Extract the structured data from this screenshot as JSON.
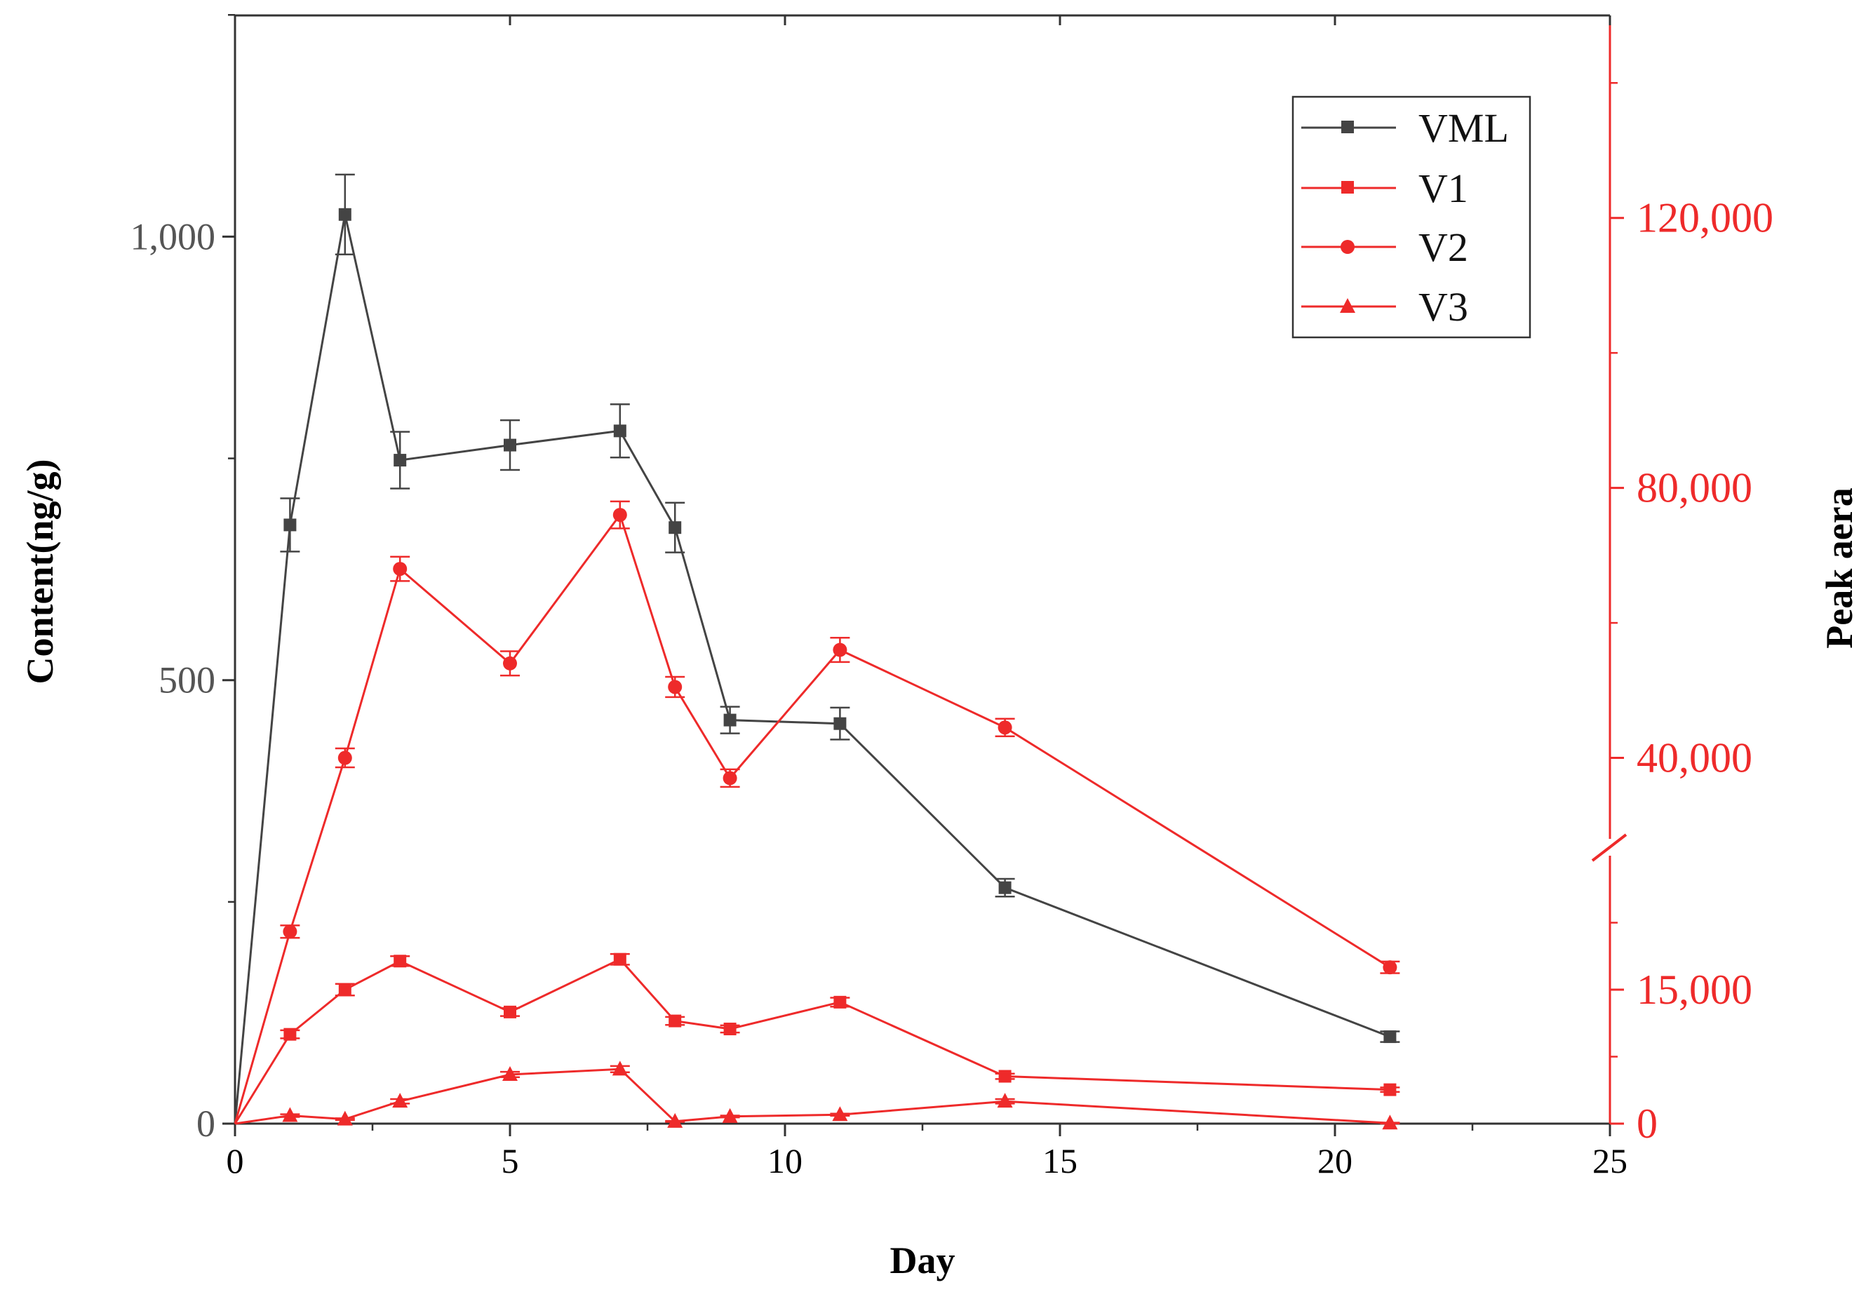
{
  "chart_data": {
    "type": "line",
    "xlabel": "Day",
    "ylabel_left": "Content(ng/g)",
    "ylabel_right": "Peak aera",
    "xlim": [
      0,
      25
    ],
    "x_ticks": [
      0,
      5,
      10,
      15,
      20,
      25
    ],
    "x_tick_labels": [
      "0",
      "5",
      "10",
      "15",
      "20",
      "25"
    ],
    "left_ylim": [
      0,
      1250
    ],
    "left_ticks": [
      0,
      500,
      1000
    ],
    "left_tick_labels": [
      "0",
      "500",
      "1,000"
    ],
    "right_axis": {
      "broken": true,
      "lower_segment": {
        "range": [
          0,
          30000
        ],
        "ticks": [
          0,
          15000
        ],
        "tick_labels": [
          "0",
          "15,000"
        ]
      },
      "upper_segment": {
        "range": [
          28000,
          150000
        ],
        "ticks": [
          40000,
          80000,
          120000
        ],
        "tick_labels": [
          "40,000",
          "80,000",
          "120,000"
        ]
      }
    },
    "legend_position": "top-right",
    "colors": {
      "vml": "#444444",
      "v": "#ee2a2a"
    },
    "series": [
      {
        "name": "VML",
        "axis": "left",
        "marker": "square",
        "x": [
          0,
          1,
          2,
          3,
          5,
          7,
          8,
          9,
          11,
          14,
          21
        ],
        "y": [
          0,
          675,
          1025,
          748,
          765,
          781,
          672,
          455,
          451,
          266,
          98
        ],
        "err": [
          0,
          30,
          45,
          32,
          28,
          30,
          28,
          15,
          18,
          10,
          6
        ]
      },
      {
        "name": "V1",
        "axis": "right",
        "marker": "square",
        "x": [
          0,
          1,
          2,
          3,
          5,
          7,
          8,
          9,
          11,
          14,
          21
        ],
        "y": [
          0,
          10000,
          15000,
          18200,
          12500,
          18400,
          11500,
          10600,
          13600,
          5300,
          3800
        ],
        "err": [
          0,
          450,
          650,
          550,
          450,
          600,
          450,
          400,
          500,
          300,
          250
        ]
      },
      {
        "name": "V2",
        "axis": "right",
        "marker": "circle",
        "x": [
          0,
          1,
          2,
          3,
          5,
          7,
          8,
          9,
          11,
          14,
          21
        ],
        "y": [
          0,
          21500,
          40000,
          68000,
          54000,
          76000,
          50500,
          37000,
          56000,
          44500,
          17500
        ],
        "err": [
          0,
          700,
          1400,
          1800,
          1800,
          2000,
          1500,
          1300,
          1800,
          1300,
          650
        ]
      },
      {
        "name": "V3",
        "axis": "right",
        "marker": "triangle",
        "x": [
          0,
          1,
          2,
          3,
          5,
          7,
          8,
          9,
          11,
          14,
          21
        ],
        "y": [
          0,
          900,
          500,
          2500,
          5500,
          6100,
          250,
          800,
          1000,
          2500,
          60
        ],
        "err": [
          0,
          150,
          100,
          250,
          300,
          350,
          50,
          100,
          120,
          250,
          50
        ]
      }
    ]
  }
}
